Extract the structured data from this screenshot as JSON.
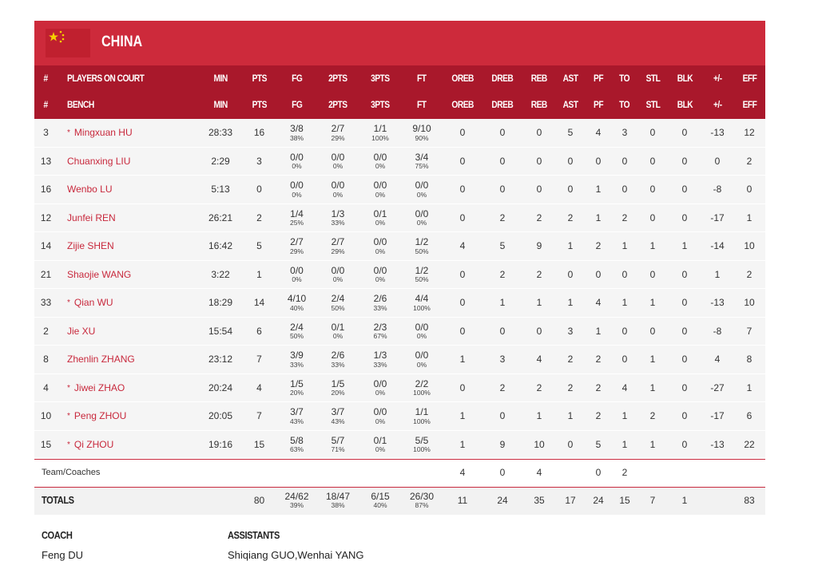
{
  "header": {
    "team": "CHINA"
  },
  "table": {
    "court_header": [
      "#",
      "PLAYERS ON COURT",
      "MIN",
      "PTS",
      "FG",
      "2PTS",
      "3PTS",
      "FT",
      "OREB",
      "DREB",
      "REB",
      "AST",
      "PF",
      "TO",
      "STL",
      "BLK",
      "+/-",
      "EFF"
    ],
    "bench_header": [
      "#",
      "BENCH",
      "MIN",
      "PTS",
      "FG",
      "2PTS",
      "3PTS",
      "FT",
      "OREB",
      "DREB",
      "REB",
      "AST",
      "PF",
      "TO",
      "STL",
      "BLK",
      "+/-",
      "EFF"
    ],
    "rows": [
      {
        "no": "3",
        "star": "*",
        "name": "Mingxuan HU",
        "cells": [
          "28:33",
          "16",
          [
            "3/8",
            "38%"
          ],
          [
            "2/7",
            "29%"
          ],
          [
            "1/1",
            "100%"
          ],
          [
            "9/10",
            "90%"
          ],
          "0",
          "0",
          "0",
          "5",
          "4",
          "3",
          "0",
          "0",
          "-13",
          "12"
        ]
      },
      {
        "no": "13",
        "name": "Chuanxing LIU",
        "cells": [
          "2:29",
          "3",
          [
            "0/0",
            "0%"
          ],
          [
            "0/0",
            "0%"
          ],
          [
            "0/0",
            "0%"
          ],
          [
            "3/4",
            "75%"
          ],
          "0",
          "0",
          "0",
          "0",
          "0",
          "0",
          "0",
          "0",
          "0",
          "2"
        ]
      },
      {
        "no": "16",
        "name": "Wenbo LU",
        "cells": [
          "5:13",
          "0",
          [
            "0/0",
            "0%"
          ],
          [
            "0/0",
            "0%"
          ],
          [
            "0/0",
            "0%"
          ],
          [
            "0/0",
            "0%"
          ],
          "0",
          "0",
          "0",
          "0",
          "1",
          "0",
          "0",
          "0",
          "-8",
          "0"
        ]
      },
      {
        "no": "12",
        "name": "Junfei REN",
        "cells": [
          "26:21",
          "2",
          [
            "1/4",
            "25%"
          ],
          [
            "1/3",
            "33%"
          ],
          [
            "0/1",
            "0%"
          ],
          [
            "0/0",
            "0%"
          ],
          "0",
          "2",
          "2",
          "2",
          "1",
          "2",
          "0",
          "0",
          "-17",
          "1"
        ]
      },
      {
        "no": "14",
        "name": "Zijie SHEN",
        "cells": [
          "16:42",
          "5",
          [
            "2/7",
            "29%"
          ],
          [
            "2/7",
            "29%"
          ],
          [
            "0/0",
            "0%"
          ],
          [
            "1/2",
            "50%"
          ],
          "4",
          "5",
          "9",
          "1",
          "2",
          "1",
          "1",
          "1",
          "-14",
          "10"
        ]
      },
      {
        "no": "21",
        "name": "Shaojie WANG",
        "cells": [
          "3:22",
          "1",
          [
            "0/0",
            "0%"
          ],
          [
            "0/0",
            "0%"
          ],
          [
            "0/0",
            "0%"
          ],
          [
            "1/2",
            "50%"
          ],
          "0",
          "2",
          "2",
          "0",
          "0",
          "0",
          "0",
          "0",
          "1",
          "2"
        ]
      },
      {
        "no": "33",
        "star": "*",
        "name": "Qian WU",
        "cells": [
          "18:29",
          "14",
          [
            "4/10",
            "40%"
          ],
          [
            "2/4",
            "50%"
          ],
          [
            "2/6",
            "33%"
          ],
          [
            "4/4",
            "100%"
          ],
          "0",
          "1",
          "1",
          "1",
          "4",
          "1",
          "1",
          "0",
          "-13",
          "10"
        ]
      },
      {
        "no": "2",
        "name": "Jie XU",
        "cells": [
          "15:54",
          "6",
          [
            "2/4",
            "50%"
          ],
          [
            "0/1",
            "0%"
          ],
          [
            "2/3",
            "67%"
          ],
          [
            "0/0",
            "0%"
          ],
          "0",
          "0",
          "0",
          "3",
          "1",
          "0",
          "0",
          "0",
          "-8",
          "7"
        ]
      },
      {
        "no": "8",
        "name": "Zhenlin ZHANG",
        "cells": [
          "23:12",
          "7",
          [
            "3/9",
            "33%"
          ],
          [
            "2/6",
            "33%"
          ],
          [
            "1/3",
            "33%"
          ],
          [
            "0/0",
            "0%"
          ],
          "1",
          "3",
          "4",
          "2",
          "2",
          "0",
          "1",
          "0",
          "4",
          "8"
        ]
      },
      {
        "no": "4",
        "star": "*",
        "name": "Jiwei ZHAO",
        "cells": [
          "20:24",
          "4",
          [
            "1/5",
            "20%"
          ],
          [
            "1/5",
            "20%"
          ],
          [
            "0/0",
            "0%"
          ],
          [
            "2/2",
            "100%"
          ],
          "0",
          "2",
          "2",
          "2",
          "2",
          "4",
          "1",
          "0",
          "-27",
          "1"
        ]
      },
      {
        "no": "10",
        "star": "*",
        "name": "Peng ZHOU",
        "cells": [
          "20:05",
          "7",
          [
            "3/7",
            "43%"
          ],
          [
            "3/7",
            "43%"
          ],
          [
            "0/0",
            "0%"
          ],
          [
            "1/1",
            "100%"
          ],
          "1",
          "0",
          "1",
          "1",
          "2",
          "1",
          "2",
          "0",
          "-17",
          "6"
        ]
      },
      {
        "no": "15",
        "star": "*",
        "name": "Qi ZHOU",
        "cells": [
          "19:16",
          "15",
          [
            "5/8",
            "63%"
          ],
          [
            "5/7",
            "71%"
          ],
          [
            "0/1",
            "0%"
          ],
          [
            "5/5",
            "100%"
          ],
          "1",
          "9",
          "10",
          "0",
          "5",
          "1",
          "1",
          "0",
          "-13",
          "22"
        ]
      }
    ],
    "team": {
      "label": "Team/Coaches",
      "cells": [
        null,
        null,
        null,
        null,
        null,
        null,
        "4",
        "0",
        "4",
        null,
        "0",
        "2",
        null,
        null,
        null,
        null
      ]
    },
    "totals": {
      "label": "TOTALS",
      "cells": [
        null,
        "80",
        [
          "24/62",
          "39%"
        ],
        [
          "18/47",
          "38%"
        ],
        [
          "6/15",
          "40%"
        ],
        [
          "26/30",
          "87%"
        ],
        "11",
        "24",
        "35",
        "17",
        "24",
        "15",
        "7",
        "1",
        null,
        "83"
      ]
    }
  },
  "staff": {
    "coach_label": "COACH",
    "coach": "Feng DU",
    "assistants_label": "ASSISTANTS",
    "assistants": "Shiqiang GUO,Wenhai YANG"
  }
}
